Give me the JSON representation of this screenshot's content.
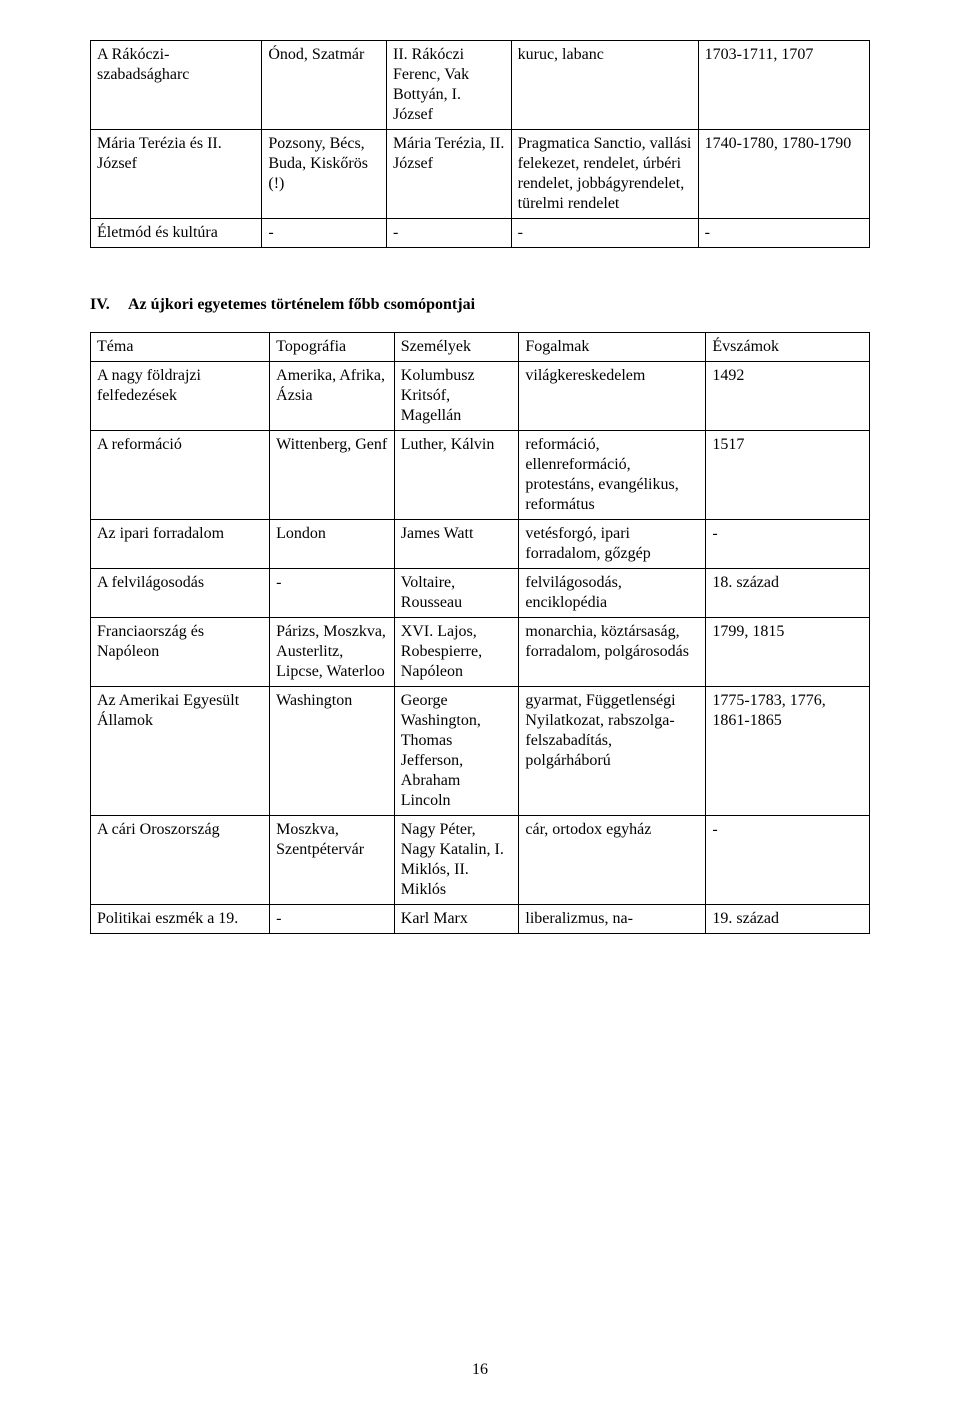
{
  "page_number": "16",
  "table1": {
    "rows": [
      {
        "c1": "A Rákóczi-szabadságharc",
        "c2": "Ónod, Szatmár",
        "c3": "II. Rákóczi Ferenc, Vak Bottyán, I. József",
        "c4": "kuruc, labanc",
        "c5": "1703-1711, 1707"
      },
      {
        "c1": "Mária Terézia és II. József",
        "c2": "Pozsony, Bécs, Buda, Kiskőrös (!)",
        "c3": "Mária Terézia, II. József",
        "c4": "Pragmatica Sanctio, vallási felekezet, rendelet, úrbéri rendelet, jobbágyrendelet, türelmi rendelet",
        "c5": "1740-1780, 1780-1790"
      },
      {
        "c1": "Életmód és kultúra",
        "c2": "-",
        "c3": "-",
        "c4": "-",
        "c5": "-"
      }
    ]
  },
  "section4": {
    "roman": "IV.",
    "title": "Az újkori egyetemes történelem főbb csomópontjai"
  },
  "table2": {
    "headers": {
      "c1": "Téma",
      "c2": "Topográfia",
      "c3": "Személyek",
      "c4": "Fogalmak",
      "c5": "Évszámok"
    },
    "rows": [
      {
        "c1": "A nagy földrajzi felfedezések",
        "c2": "Amerika, Afrika, Ázsia",
        "c3": "Kolumbusz Kritsóf, Magellán",
        "c4": "világkereskedelem",
        "c5": "1492"
      },
      {
        "c1": "A reformáció",
        "c2": "Wittenberg, Genf",
        "c3": "Luther, Kálvin",
        "c4": "reformáció, ellenreformáció, protestáns, evangélikus, református",
        "c5": "1517"
      },
      {
        "c1": "Az ipari forradalom",
        "c2": "London",
        "c3": "James Watt",
        "c4": "vetésforgó, ipari forradalom, gőzgép",
        "c5": "-"
      },
      {
        "c1": "A felvilágosodás",
        "c2": "-",
        "c3": "Voltaire, Rousseau",
        "c4": "felvilágosodás, enciklopédia",
        "c5": "18. század"
      },
      {
        "c1": "Franciaország és Napóleon",
        "c2": "Párizs, Moszkva, Austerlitz, Lipcse, Waterloo",
        "c3": "XVI. Lajos, Robespierre, Napóleon",
        "c4": "monarchia, köztársaság, forradalom, polgárosodás",
        "c5": "1799, 1815"
      },
      {
        "c1": "Az Amerikai Egyesült Államok",
        "c2": "Washington",
        "c3": "George Washington, Thomas Jefferson, Abraham Lincoln",
        "c4": "gyarmat, Függetlenségi Nyilatkozat, rabszolga-felszabadítás, polgárháború",
        "c5": "1775-1783, 1776, 1861-1865"
      },
      {
        "c1": "A cári Oroszország",
        "c2": "Moszkva, Szentpétervár",
        "c3": "Nagy Péter, Nagy Katalin, I. Miklós, II. Miklós",
        "c4": "cár, ortodox egyház",
        "c5": "-"
      },
      {
        "c1": "Politikai eszmék a 19.",
        "c2": "-",
        "c3": "Karl Marx",
        "c4": "liberalizmus, na-",
        "c5": "19. század"
      }
    ]
  }
}
